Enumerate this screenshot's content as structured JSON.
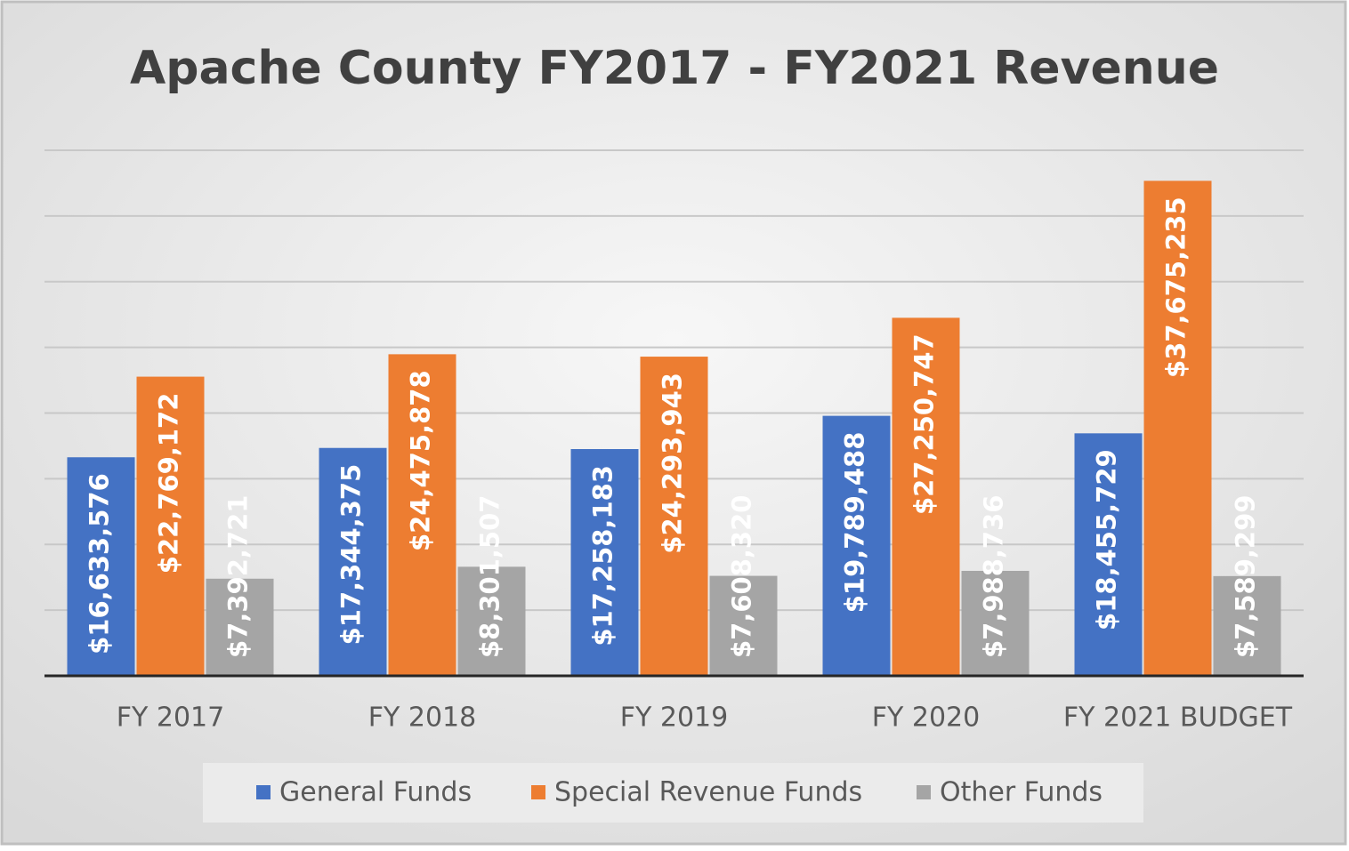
{
  "chart_data": {
    "type": "bar",
    "title": "Apache County FY2017 - FY2021 Revenue",
    "categories": [
      "FY 2017",
      "FY 2018",
      "FY 2019",
      "FY 2020",
      "FY 2021 BUDGET"
    ],
    "series": [
      {
        "name": "General Funds",
        "color": "#4472c4",
        "values": [
          16633576,
          17344375,
          17258183,
          19789488,
          18455729
        ],
        "value_labels": [
          "$16,633,576",
          "$17,344,375",
          "$17,258,183",
          "$19,789,488",
          "$18,455,729"
        ]
      },
      {
        "name": "Special Revenue Funds",
        "color": "#ed7d31",
        "values": [
          22769172,
          24475878,
          24293943,
          27250747,
          37675235
        ],
        "value_labels": [
          "$22,769,172",
          "$24,475,878",
          "$24,293,943",
          "$27,250,747",
          "$37,675,235"
        ]
      },
      {
        "name": "Other Funds",
        "color": "#a5a5a5",
        "values": [
          7392721,
          8301507,
          7608320,
          7988736,
          7589299
        ],
        "value_labels": [
          "$7,392,721",
          "$8,301,507",
          "$7,608,320",
          "$7,988,736",
          "$7,589,299"
        ]
      }
    ],
    "ylim": [
      0,
      40000000
    ],
    "yticks": [
      0,
      5000000,
      10000000,
      15000000,
      20000000,
      25000000,
      30000000,
      35000000,
      40000000
    ],
    "grid": true,
    "legend": "bottom"
  }
}
